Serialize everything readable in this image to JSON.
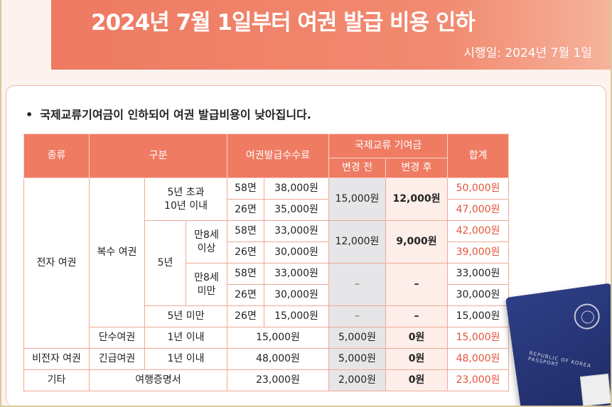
{
  "header": {
    "title": "2024년 7월 1일부터 여권 발급 비용 인하",
    "effective_date": "시행일: 2024년 7월 1일"
  },
  "bullet_text": "국제교류기여금이 인하되어 여권 발급비용이 낮아집니다.",
  "table": {
    "headers": {
      "type": "종류",
      "category": "구분",
      "issue_fee": "여권발급수수료",
      "contribution": "국제교류 기여금",
      "before": "변경 전",
      "after": "변경 후",
      "total": "합계"
    },
    "labels": {
      "electronic": "전자 여권",
      "multiple": "복수 여권",
      "over5_line1": "5년 초과",
      "over5_line2": "10년 이내",
      "five_years": "5년",
      "age8_over_line1": "만8세",
      "age8_over_line2": "이상",
      "age8_under_line1": "만8세",
      "age8_under_line2": "미만",
      "under5": "5년 미만",
      "single": "단수여권",
      "within1": "1년 이내",
      "non_electronic": "비전자 여권",
      "emergency": "긴급여권",
      "within1_b": "1년 이내",
      "other": "기타",
      "travel_cert": "여행증명서"
    },
    "rows": [
      {
        "pages": "58면",
        "fee": "38,000원",
        "before": "15,000원",
        "after": "12,000원",
        "total": "50,000원"
      },
      {
        "pages": "26면",
        "fee": "35,000원",
        "total": "47,000원"
      },
      {
        "pages": "58면",
        "fee": "33,000원",
        "before": "12,000원",
        "after": "9,000원",
        "total": "42,000원"
      },
      {
        "pages": "26면",
        "fee": "30,000원",
        "total": "39,000원"
      },
      {
        "pages": "58면",
        "fee": "33,000원",
        "before": "–",
        "after": "–",
        "total": "33,000원"
      },
      {
        "pages": "26면",
        "fee": "30,000원",
        "total": "30,000원"
      },
      {
        "pages": "26면",
        "fee": "15,000원",
        "before": "–",
        "after": "–",
        "total": "15,000원"
      },
      {
        "fee": "15,000원",
        "before": "5,000원",
        "after": "0원",
        "total": "15,000원"
      },
      {
        "fee": "48,000원",
        "before": "5,000원",
        "after": "0원",
        "total": "48,000원"
      },
      {
        "fee": "23,000원",
        "before": "2,000원",
        "after": "0원",
        "total": "23,000원"
      }
    ]
  },
  "passport": {
    "cover_text_1": "REPUBLIC OF KOREA",
    "cover_text_2": "PASSPORT"
  },
  "colors": {
    "banner": "#ef7b63",
    "header_bg": "#ef7b63",
    "accent_red": "#e5533b",
    "before_bg": "#e6e6e8",
    "after_bg": "#fdeee9"
  }
}
